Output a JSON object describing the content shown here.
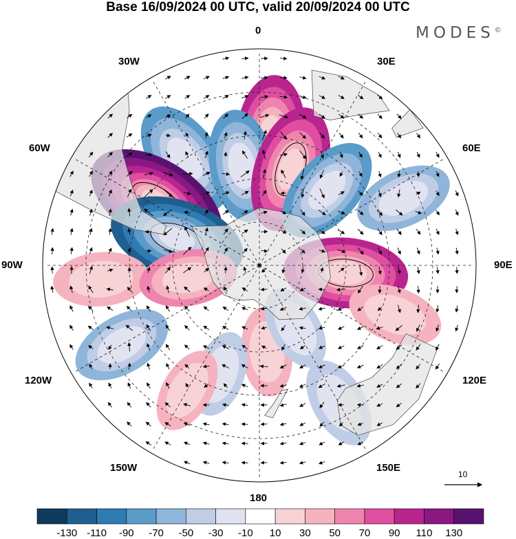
{
  "title": "Base 16/09/2024 00 UTC, valid 20/09/2024 00 UTC",
  "brand": {
    "name": "MODES",
    "mark": "©"
  },
  "longitude_labels": {
    "n": "0",
    "ne30": "30E",
    "ne60": "60E",
    "e": "90E",
    "se120": "120E",
    "se150": "150E",
    "s": "180",
    "sw150": "150W",
    "sw120": "120W",
    "w": "90W",
    "nw60": "60W",
    "nw30": "30W"
  },
  "reference_vector": {
    "label": "10"
  },
  "colorbar": {
    "labels": [
      "-130",
      "-110",
      "-90",
      "-70",
      "-50",
      "-30",
      "-10",
      "10",
      "30",
      "50",
      "70",
      "90",
      "110",
      "130"
    ],
    "colors": [
      "#0f3a5c",
      "#1f5f8f",
      "#2f7bb3",
      "#5a9bc9",
      "#8fb5da",
      "#bfcde6",
      "#e2e3f0",
      "#ffffff",
      "#f8d3d6",
      "#f5b3c0",
      "#ef85ae",
      "#df4ea1",
      "#b8258f",
      "#8a1882",
      "#5a1270"
    ]
  },
  "map": {
    "projection": "south-polar-stereographic",
    "ocean_color": "#ffffff",
    "land_color": "#e4e4e4",
    "anomalies": [
      {
        "lon": 5,
        "lat": -45,
        "value": 85
      },
      {
        "lon": -35,
        "lat": -45,
        "value": -80
      },
      {
        "lon": -10,
        "lat": -55,
        "value": -70
      },
      {
        "lon": 18,
        "lat": -55,
        "value": 95
      },
      {
        "lon": -58,
        "lat": -48,
        "value": 125
      },
      {
        "lon": 42,
        "lat": -55,
        "value": -70
      },
      {
        "lon": -72,
        "lat": -60,
        "value": -110
      },
      {
        "lon": 95,
        "lat": -60,
        "value": 90
      },
      {
        "lon": 65,
        "lat": -35,
        "value": -45
      },
      {
        "lon": -95,
        "lat": -35,
        "value": 40
      },
      {
        "lon": -120,
        "lat": -35,
        "value": -50
      },
      {
        "lon": 110,
        "lat": -40,
        "value": 40
      },
      {
        "lon": 150,
        "lat": -35,
        "value": -35
      },
      {
        "lon": 175,
        "lat": -60,
        "value": 30
      },
      {
        "lon": -100,
        "lat": -65,
        "value": 45
      },
      {
        "lon": 150,
        "lat": -65,
        "value": -25
      },
      {
        "lon": -160,
        "lat": -50,
        "value": -25
      },
      {
        "lon": -150,
        "lat": -40,
        "value": 25
      }
    ]
  }
}
